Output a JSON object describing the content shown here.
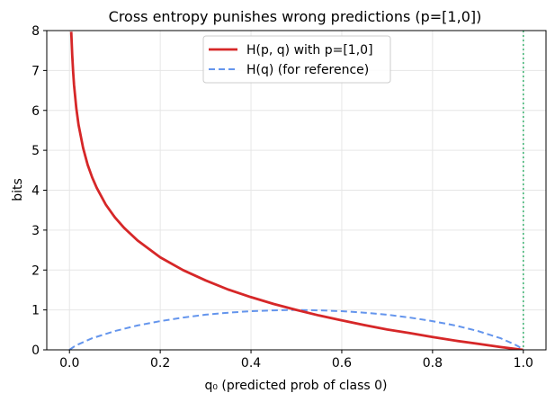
{
  "chart_data": {
    "type": "line",
    "title": "Cross entropy punishes wrong predictions (p=[1,0])",
    "xlabel": "q₀  (predicted prob of class 0)",
    "ylabel": "bits",
    "xlim": [
      -0.05,
      1.05
    ],
    "ylim": [
      0,
      8
    ],
    "xticks": [
      0.0,
      0.2,
      0.4,
      0.6,
      0.8,
      1.0
    ],
    "xtick_labels": [
      "0.0",
      "0.2",
      "0.4",
      "0.6",
      "0.8",
      "1.0"
    ],
    "yticks": [
      0,
      1,
      2,
      3,
      4,
      5,
      6,
      7,
      8
    ],
    "ytick_labels": [
      "0",
      "1",
      "2",
      "3",
      "4",
      "5",
      "6",
      "7",
      "8"
    ],
    "grid": true,
    "legend_position": "top-center",
    "series": [
      {
        "name": "H(p, q) with p=[1,0]",
        "style": "solid",
        "color": "#d62728",
        "x": [
          0.004,
          0.006,
          0.008,
          0.01,
          0.015,
          0.02,
          0.03,
          0.04,
          0.05,
          0.06,
          0.08,
          0.1,
          0.12,
          0.15,
          0.2,
          0.25,
          0.3,
          0.35,
          0.4,
          0.45,
          0.5,
          0.55,
          0.6,
          0.65,
          0.7,
          0.75,
          0.8,
          0.85,
          0.9,
          0.95,
          0.999
        ],
        "y": [
          7.97,
          7.38,
          6.97,
          6.64,
          6.06,
          5.64,
          5.06,
          4.64,
          4.32,
          4.06,
          3.64,
          3.32,
          3.06,
          2.74,
          2.32,
          2.0,
          1.74,
          1.51,
          1.32,
          1.15,
          1.0,
          0.86,
          0.74,
          0.62,
          0.51,
          0.42,
          0.32,
          0.23,
          0.15,
          0.07,
          0.0
        ]
      },
      {
        "name": "H(q) (for reference)",
        "style": "dashed",
        "color": "#6495ed",
        "x": [
          0.0,
          0.01,
          0.02,
          0.05,
          0.1,
          0.15,
          0.2,
          0.25,
          0.3,
          0.35,
          0.4,
          0.45,
          0.5,
          0.55,
          0.6,
          0.65,
          0.7,
          0.75,
          0.8,
          0.85,
          0.9,
          0.95,
          0.98,
          0.99,
          1.0
        ],
        "y": [
          0.0,
          0.08,
          0.14,
          0.29,
          0.47,
          0.61,
          0.72,
          0.81,
          0.88,
          0.93,
          0.97,
          0.99,
          1.0,
          0.99,
          0.97,
          0.93,
          0.88,
          0.81,
          0.72,
          0.61,
          0.47,
          0.29,
          0.14,
          0.08,
          0.0
        ]
      }
    ],
    "reference_line": {
      "orientation": "vertical",
      "x": 1.0,
      "style": "dotted",
      "color": "#3cb371"
    }
  }
}
